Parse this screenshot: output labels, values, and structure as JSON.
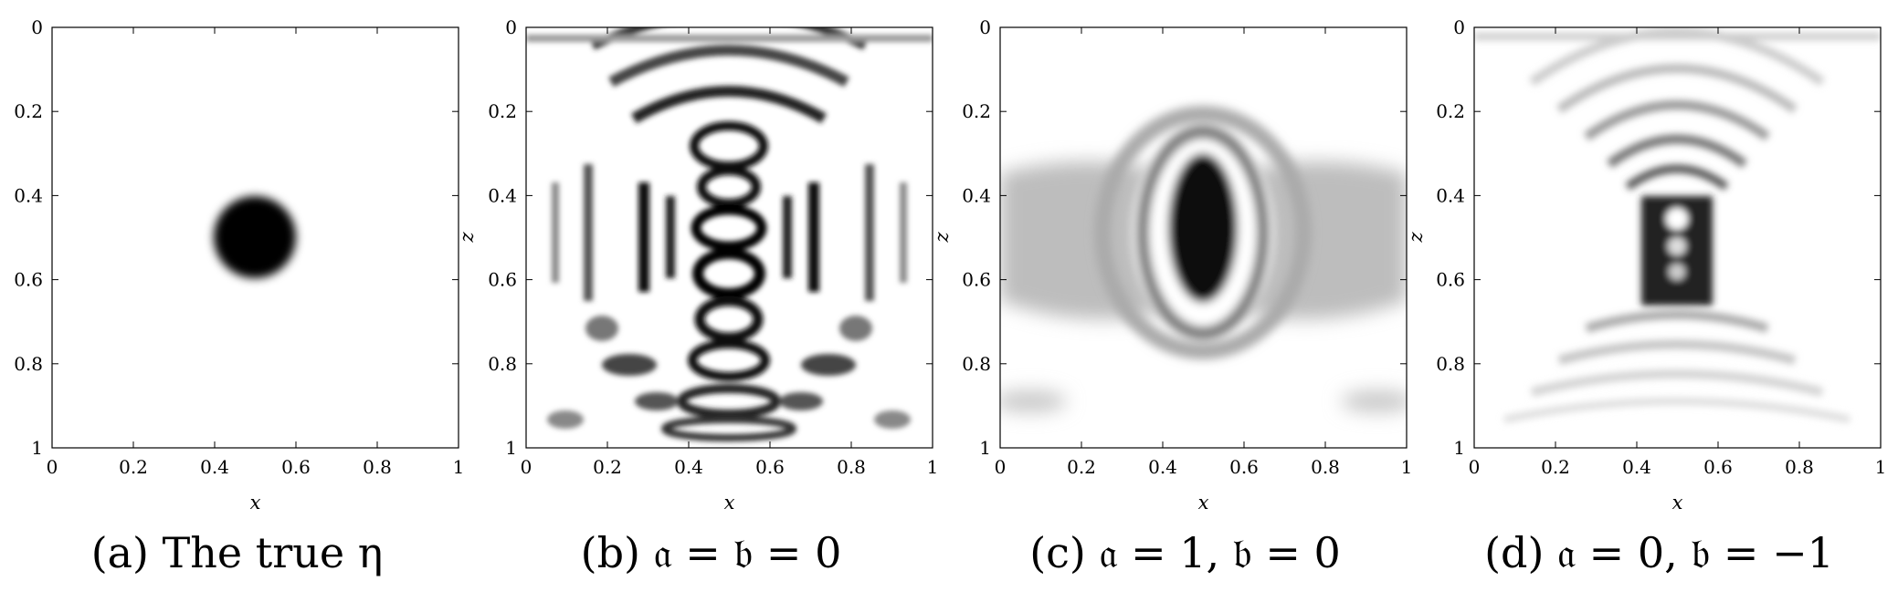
{
  "figure": {
    "panels": [
      {
        "id": "a",
        "caption": "(a) The true η",
        "xlabel": "x",
        "ylabel": ""
      },
      {
        "id": "b",
        "caption": "(b) 𝔞 = 𝔟 = 0",
        "xlabel": "x",
        "ylabel": "z"
      },
      {
        "id": "c",
        "caption": "(c) 𝔞 = 1, 𝔟 = 0",
        "xlabel": "x",
        "ylabel": "z"
      },
      {
        "id": "d",
        "caption": "(d) 𝔞 = 0, 𝔟 = −1",
        "xlabel": "x",
        "ylabel": "z"
      }
    ],
    "x_ticks": [
      "0",
      "0.2",
      "0.4",
      "0.6",
      "0.8",
      "1"
    ],
    "z_ticks": [
      "0",
      "0.2",
      "0.4",
      "0.6",
      "0.8",
      "1"
    ],
    "colormap": "grayscale (white = 0, black = max)"
  },
  "chart_data": [
    {
      "type": "heatmap",
      "xlim": [
        0,
        1
      ],
      "ylim": [
        0,
        1
      ],
      "y_inverted": true,
      "content": "true disk inclusion centered at (0.5, 0.5), radius ≈ 0.1"
    },
    {
      "type": "heatmap",
      "xlim": [
        0,
        1
      ],
      "ylim": [
        0,
        1
      ],
      "y_inverted": true,
      "content": "reconstruction with strong oscillatory artifacts around x = 0.5"
    },
    {
      "type": "heatmap",
      "xlim": [
        0,
        1
      ],
      "ylim": [
        0,
        1
      ],
      "y_inverted": true,
      "content": "smooth reconstruction, elongated dark blob at (0.5, 0.5)"
    },
    {
      "type": "heatmap",
      "xlim": [
        0,
        1
      ],
      "ylim": [
        0,
        1
      ],
      "y_inverted": true,
      "content": "reconstruction with concentric arc artifacts, dark column near x = 0.5"
    }
  ]
}
